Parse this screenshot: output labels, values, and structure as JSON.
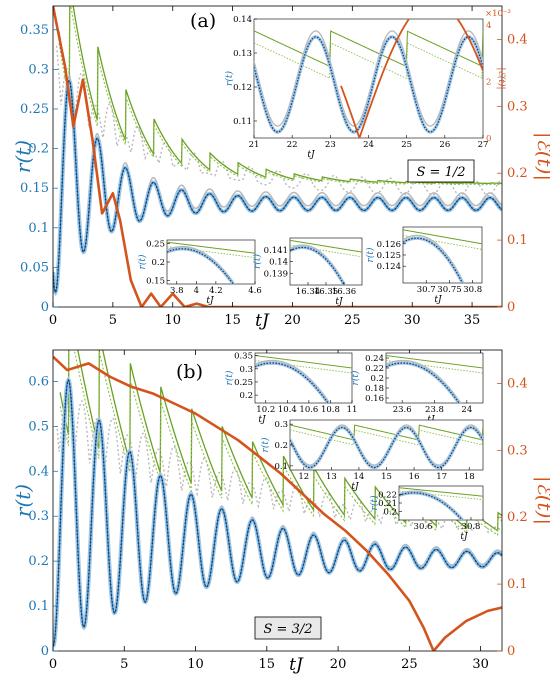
{
  "colors": {
    "blue": "#1f77b4",
    "blue_light": "#9ec5e6",
    "orange": "#d4541e",
    "green": "#6aa121",
    "green_light": "#8cbf4a",
    "gray": "#b8b8b8"
  },
  "chart_data": [
    {
      "type": "line",
      "panel_label": "(a)",
      "spin_label": "S = 1/2",
      "xlabel": "tJ",
      "ylabel_left": "r(t)",
      "ylabel_right": "|ℰ(t)|",
      "xlim": [
        0,
        37.5
      ],
      "ylim_left": [
        0,
        0.38
      ],
      "ylim_right": [
        0,
        0.45
      ],
      "x_ticks": [
        "0",
        "5",
        "10",
        "15",
        "20",
        "25",
        "30",
        "35"
      ],
      "y_ticks_left": [
        "0",
        "0.05",
        "0.1",
        "0.15",
        "0.2",
        "0.25",
        "0.3",
        "0.35"
      ],
      "y_ticks_right": [
        "0",
        "0.1",
        "0.2",
        "0.3",
        "0.4"
      ],
      "grid": false,
      "oscillation": {
        "period": 2.34,
        "first_peak": 1.4,
        "first_peak_value": 0.35,
        "first_min_value": 0.02,
        "asymptote": 0.13,
        "decay": 0.29
      },
      "series_right": {
        "points": [
          [
            0,
            0.45
          ],
          [
            1,
            0.36
          ],
          [
            1.7,
            0.27
          ],
          [
            2.5,
            0.34
          ],
          [
            3.3,
            0.25
          ],
          [
            4.1,
            0.14
          ],
          [
            5.0,
            0.17
          ],
          [
            5.6,
            0.13
          ],
          [
            6.5,
            0.04
          ],
          [
            7.4,
            0.0
          ],
          [
            8.2,
            0.02
          ],
          [
            9.0,
            0.0
          ],
          [
            10.0,
            0.02
          ],
          [
            11.0,
            0.0
          ],
          [
            12.0,
            0.005
          ],
          [
            13.0,
            0.0
          ],
          [
            37.5,
            0.0
          ]
        ]
      },
      "insets": [
        {
          "xlim": [
            21,
            27
          ],
          "ylim": [
            0.105,
            0.14
          ],
          "x_ticks": [
            "21",
            "22",
            "23",
            "24",
            "25",
            "26",
            "27"
          ],
          "y_ticks": [
            "0.11",
            "0.12",
            "0.13",
            "0.14"
          ],
          "xlabel": "tJ",
          "ylabel": "r(t)",
          "ylabel_right": "|ℰ(t)|",
          "right_ticks": [
            "0",
            "2",
            "4"
          ],
          "right_exponent": "×10⁻³"
        },
        {
          "xlim": [
            3.7,
            4.6
          ],
          "ylim": [
            0.14,
            0.26
          ],
          "x_ticks": [
            "3.8",
            "4",
            "4.2",
            "4.6"
          ],
          "y_ticks": [
            "0.15",
            "0.2",
            "0.25"
          ],
          "xlabel": "tJ",
          "ylabel": "r(t)"
        },
        {
          "xlim": [
            16.33,
            16.37
          ],
          "ylim": [
            0.138,
            0.142
          ],
          "x_ticks": [
            "16.34",
            "16.35",
            "16.36"
          ],
          "y_ticks": [
            "0.139",
            "0.14",
            "0.141"
          ],
          "xlabel": "tJ",
          "ylabel": "r(t)"
        },
        {
          "xlim": [
            30.65,
            30.82
          ],
          "ylim": [
            0.1225,
            0.1275
          ],
          "x_ticks": [
            "30.7",
            "30.75",
            "30.8"
          ],
          "y_ticks": [
            "0.124",
            "0.125",
            "0.126"
          ],
          "xlabel": "tJ",
          "ylabel": "r(t)"
        }
      ]
    },
    {
      "type": "line",
      "panel_label": "(b)",
      "spin_label": "S = 3/2",
      "xlabel": "tJ",
      "ylabel_left": "r(t)",
      "ylabel_right": "|ℰ(t)|",
      "xlim": [
        0,
        31.5
      ],
      "ylim_left": [
        0,
        0.67
      ],
      "ylim_right": [
        0,
        0.45
      ],
      "x_ticks": [
        "0",
        "5",
        "10",
        "15",
        "20",
        "25",
        "30"
      ],
      "y_ticks_left": [
        "0",
        "0.1",
        "0.2",
        "0.3",
        "0.4",
        "0.5",
        "0.6"
      ],
      "y_ticks_right": [
        "0",
        "0.1",
        "0.2",
        "0.3",
        "0.4"
      ],
      "grid": false,
      "oscillation": {
        "period": 2.15,
        "first_peak": 1.1,
        "first_peak_value": 0.65,
        "first_min_value": 0.02,
        "asymptote": 0.2,
        "decay": 0.12
      },
      "series_right": {
        "points": [
          [
            0,
            0.44
          ],
          [
            1.0,
            0.42
          ],
          [
            2.5,
            0.43
          ],
          [
            4.0,
            0.41
          ],
          [
            5.5,
            0.395
          ],
          [
            7.0,
            0.385
          ],
          [
            8.5,
            0.37
          ],
          [
            10.0,
            0.355
          ],
          [
            11.5,
            0.335
          ],
          [
            13.0,
            0.315
          ],
          [
            14.5,
            0.29
          ],
          [
            16.0,
            0.265
          ],
          [
            17.5,
            0.235
          ],
          [
            19.0,
            0.205
          ],
          [
            20.5,
            0.18
          ],
          [
            22.0,
            0.15
          ],
          [
            23.5,
            0.115
          ],
          [
            25.0,
            0.075
          ],
          [
            26.0,
            0.035
          ],
          [
            26.7,
            0.0
          ],
          [
            27.5,
            0.02
          ],
          [
            29.0,
            0.045
          ],
          [
            30.5,
            0.06
          ],
          [
            31.5,
            0.065
          ]
        ]
      },
      "insets": [
        {
          "xlim": [
            10.1,
            11
          ],
          "ylim": [
            0.17,
            0.36
          ],
          "x_ticks": [
            "10.2",
            "10.4",
            "10.6",
            "10.8",
            "11"
          ],
          "y_ticks": [
            "0.2",
            "0.25",
            "0.3",
            "0.35"
          ],
          "xlabel": "tJ",
          "ylabel": "r(t)"
        },
        {
          "xlim": [
            23.5,
            24.1
          ],
          "ylim": [
            0.15,
            0.25
          ],
          "x_ticks": [
            "23.6",
            "23.8",
            "24"
          ],
          "y_ticks": [
            "0.16",
            "0.18",
            "0.2",
            "0.22",
            "0.24"
          ],
          "xlabel": "tJ",
          "ylabel": "r(t)"
        },
        {
          "xlim": [
            11.5,
            18.5
          ],
          "ylim": [
            0.08,
            0.32
          ],
          "x_ticks": [
            "12",
            "13",
            "14",
            "15",
            "16",
            "17",
            "18"
          ],
          "y_ticks": [
            "0.1",
            "0.2",
            "0.3"
          ],
          "xlabel": "tJ",
          "ylabel": "r(t)"
        },
        {
          "xlim": [
            30.5,
            30.85
          ],
          "ylim": [
            0.19,
            0.23
          ],
          "x_ticks": [
            "30.6",
            "30.8"
          ],
          "y_ticks": [
            "0.2",
            "0.21",
            "0.22"
          ],
          "xlabel": "tJ",
          "ylabel": "r(t)"
        }
      ]
    }
  ]
}
